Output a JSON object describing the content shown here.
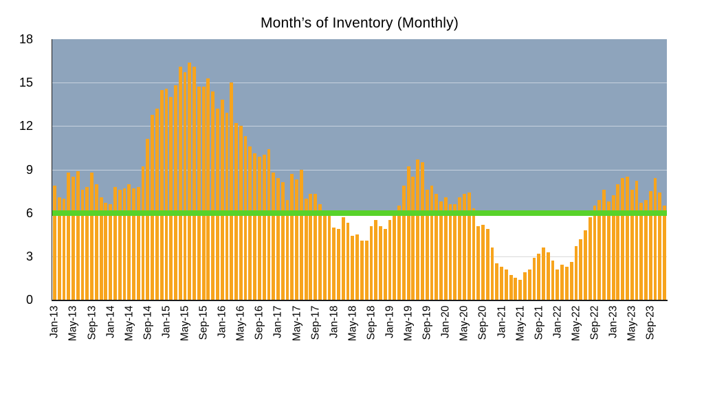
{
  "title": "Month’s of Inventory (Monthly)",
  "colors": {
    "bar": "#F7A41D",
    "reference_line": "#58D22A",
    "band_above_6": "#8EA4BC",
    "gridline_on_band": "rgba(255,255,255,0.5)",
    "gridline_on_white": "#d9d9d9",
    "axis": "#1d1d1d",
    "text": "#000000",
    "background": "#ffffff"
  },
  "chart_data": {
    "type": "bar",
    "title": "Month’s of Inventory (Monthly)",
    "ylabel": "",
    "xlabel": "",
    "ylim": [
      0,
      18
    ],
    "yticks": [
      0,
      3,
      6,
      9,
      12,
      15,
      18
    ],
    "grid": true,
    "x_tick_every": 4,
    "legend": "none",
    "band": {
      "from": 6,
      "to": 18
    },
    "reference_line": {
      "value": 6
    },
    "categories": [
      "Jan-13",
      "Feb-13",
      "Mar-13",
      "Apr-13",
      "May-13",
      "Jun-13",
      "Jul-13",
      "Aug-13",
      "Sep-13",
      "Oct-13",
      "Nov-13",
      "Dec-13",
      "Jan-14",
      "Feb-14",
      "Mar-14",
      "Apr-14",
      "May-14",
      "Jun-14",
      "Jul-14",
      "Aug-14",
      "Sep-14",
      "Oct-14",
      "Nov-14",
      "Dec-14",
      "Jan-15",
      "Feb-15",
      "Mar-15",
      "Apr-15",
      "May-15",
      "Jun-15",
      "Jul-15",
      "Aug-15",
      "Sep-15",
      "Oct-15",
      "Nov-15",
      "Dec-15",
      "Jan-16",
      "Feb-16",
      "Mar-16",
      "Apr-16",
      "May-16",
      "Jun-16",
      "Jul-16",
      "Aug-16",
      "Sep-16",
      "Oct-16",
      "Nov-16",
      "Dec-16",
      "Jan-17",
      "Feb-17",
      "Mar-17",
      "Apr-17",
      "May-17",
      "Jun-17",
      "Jul-17",
      "Aug-17",
      "Sep-17",
      "Oct-17",
      "Nov-17",
      "Dec-17",
      "Jan-18",
      "Feb-18",
      "Mar-18",
      "Apr-18",
      "May-18",
      "Jun-18",
      "Jul-18",
      "Aug-18",
      "Sep-18",
      "Oct-18",
      "Nov-18",
      "Dec-18",
      "Jan-19",
      "Feb-19",
      "Mar-19",
      "Apr-19",
      "May-19",
      "Jun-19",
      "Jul-19",
      "Aug-19",
      "Sep-19",
      "Oct-19",
      "Nov-19",
      "Dec-19",
      "Jan-20",
      "Feb-20",
      "Mar-20",
      "Apr-20",
      "May-20",
      "Jun-20",
      "Jul-20",
      "Aug-20",
      "Sep-20",
      "Oct-20",
      "Nov-20",
      "Dec-20",
      "Jan-21",
      "Feb-21",
      "Mar-21",
      "Apr-21",
      "May-21",
      "Jun-21",
      "Jul-21",
      "Aug-21",
      "Sep-21",
      "Oct-21",
      "Nov-21",
      "Dec-21",
      "Jan-22",
      "Feb-22",
      "Mar-22",
      "Apr-22",
      "May-22",
      "Jun-22",
      "Jul-22",
      "Aug-22",
      "Sep-22",
      "Oct-22",
      "Nov-22",
      "Dec-22",
      "Jan-23",
      "Feb-23",
      "Mar-23",
      "Apr-23",
      "May-23",
      "Jun-23",
      "Jul-23",
      "Aug-23",
      "Sep-23",
      "Oct-23",
      "Nov-23",
      "Dec-23"
    ],
    "values": [
      7.9,
      7.1,
      7.0,
      8.8,
      8.5,
      8.9,
      7.6,
      7.8,
      8.8,
      8.0,
      7.1,
      6.7,
      6.6,
      7.8,
      7.6,
      7.7,
      8.0,
      7.7,
      7.8,
      9.2,
      11.1,
      12.8,
      13.2,
      14.5,
      14.6,
      14.0,
      14.8,
      16.1,
      15.7,
      16.4,
      16.1,
      14.7,
      14.7,
      15.3,
      14.4,
      13.2,
      13.8,
      12.9,
      15.0,
      12.2,
      12.0,
      11.3,
      10.6,
      10.1,
      9.9,
      10.0,
      10.4,
      8.8,
      8.4,
      8.1,
      6.9,
      8.7,
      8.3,
      9.0,
      7.0,
      7.3,
      7.3,
      6.6,
      6.0,
      5.8,
      5.0,
      4.9,
      5.7,
      5.3,
      4.4,
      4.5,
      4.1,
      4.1,
      5.1,
      5.5,
      5.1,
      4.9,
      5.5,
      5.9,
      6.5,
      7.9,
      9.2,
      8.5,
      9.7,
      9.5,
      7.6,
      7.9,
      7.3,
      6.8,
      7.1,
      6.6,
      6.6,
      7.1,
      7.3,
      7.4,
      6.3,
      5.1,
      5.2,
      4.9,
      3.6,
      2.5,
      2.3,
      2.1,
      1.7,
      1.5,
      1.4,
      1.9,
      2.1,
      2.9,
      3.2,
      3.6,
      3.3,
      2.7,
      2.1,
      2.4,
      2.3,
      2.6,
      3.7,
      4.2,
      4.8,
      5.7,
      6.5,
      6.9,
      7.6,
      6.8,
      7.2,
      8.0,
      8.4,
      8.5,
      7.6,
      8.2,
      6.7,
      6.9,
      7.5,
      8.4,
      7.4,
      6.5
    ]
  }
}
